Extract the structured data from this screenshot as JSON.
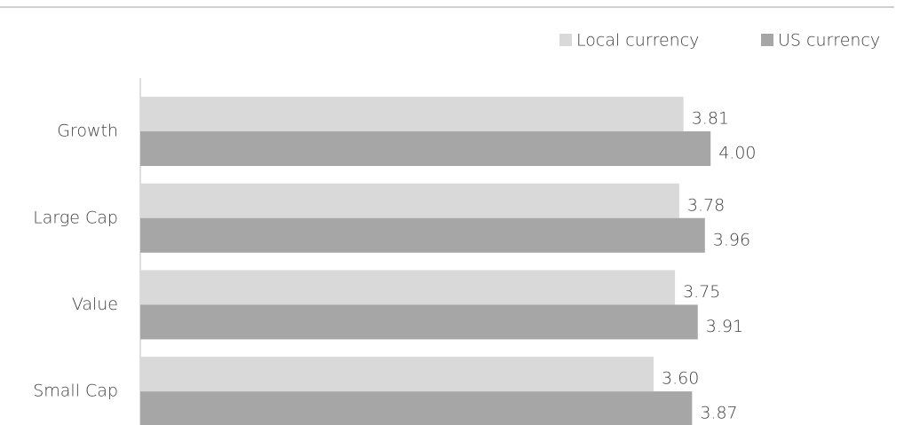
{
  "chart_data": {
    "type": "bar",
    "orientation": "horizontal",
    "categories": [
      "Growth",
      "Large Cap",
      "Value",
      "Small Cap"
    ],
    "series": [
      {
        "name": "Local currency",
        "color": "#d9d9d9",
        "values": [
          3.81,
          3.78,
          3.75,
          3.6
        ],
        "value_labels": [
          "3.81",
          "3.78",
          "3.75",
          "3.60"
        ]
      },
      {
        "name": "US currency",
        "color": "#a6a6a6",
        "values": [
          4.0,
          3.96,
          3.91,
          3.87
        ],
        "value_labels": [
          "4.00",
          "3.96",
          "3.91",
          "3.87"
        ]
      }
    ],
    "xlim": [
      0,
      5.4
    ],
    "legend": "top-right"
  }
}
